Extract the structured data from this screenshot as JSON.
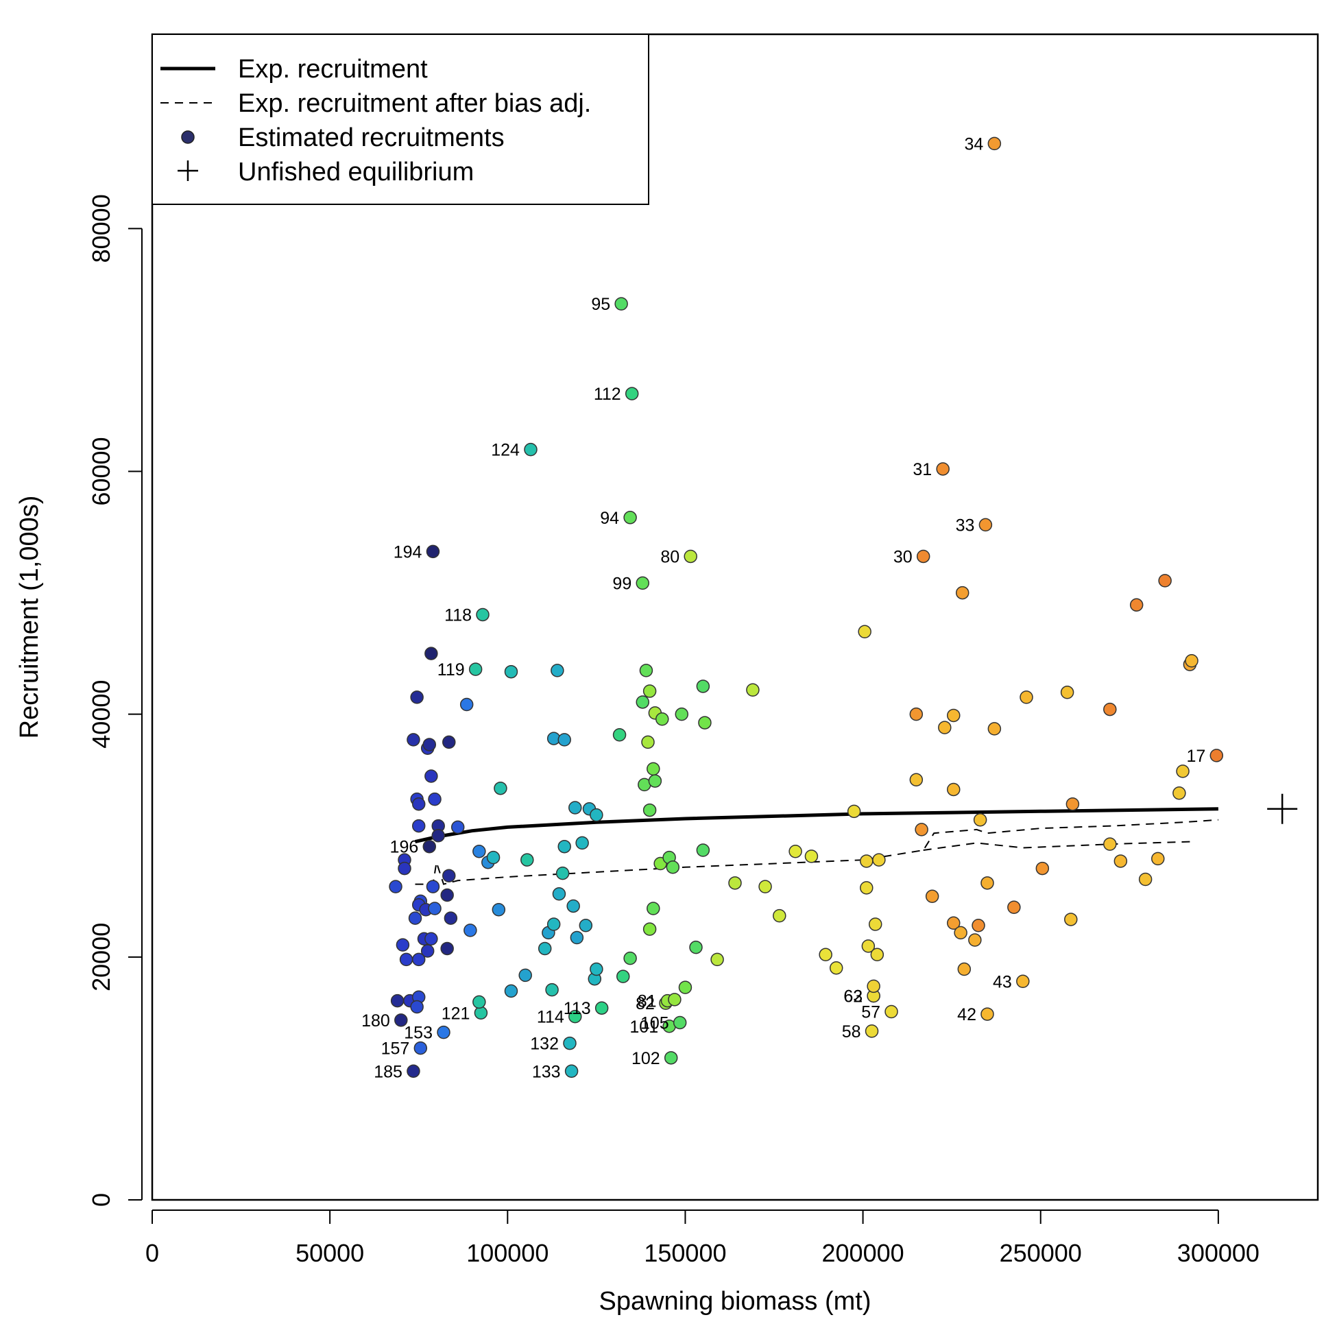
{
  "chart_data": {
    "type": "scatter",
    "title": "",
    "xlabel": "Spawning biomass (mt)",
    "ylabel": "Recruitment (1,000s)",
    "xlim": [
      0,
      328000
    ],
    "ylim": [
      0,
      96000
    ],
    "x_ticks": [
      0,
      50000,
      100000,
      150000,
      200000,
      250000,
      300000
    ],
    "y_ticks": [
      0,
      20000,
      40000,
      60000,
      80000
    ],
    "grid": false,
    "legend": {
      "placement": "top-left",
      "entries": [
        {
          "label": "Exp. recruitment",
          "symbol": "solid-line"
        },
        {
          "label": "Exp. recruitment after bias adj.",
          "symbol": "dashed-line"
        },
        {
          "label": "Estimated recruitments",
          "symbol": "dot"
        },
        {
          "label": "Unfished equilibrium",
          "symbol": "plus"
        }
      ]
    },
    "colors": {
      "gradient": [
        "#1e1e5a",
        "#2a38c8",
        "#2a78e6",
        "#22b4c4",
        "#28d08a",
        "#7ee640",
        "#e8e83a",
        "#f6b830",
        "#f08a30",
        "#e86a2a"
      ],
      "expected_line": "#000000",
      "point_outline": "#333333"
    },
    "expected_recruitment": {
      "x": [
        74000,
        80000,
        90000,
        100000,
        125000,
        150000,
        200000,
        250000,
        300000
      ],
      "y": [
        29500,
        29900,
        30400,
        30700,
        31100,
        31400,
        31800,
        32000,
        32200
      ]
    },
    "bias_adjusted_recruitment": {
      "x": [
        74000,
        79000,
        80000,
        82000,
        86000,
        100000,
        150000,
        200000,
        217000,
        220000,
        232000,
        235000,
        250000,
        270000,
        290000,
        300000
      ],
      "y": [
        26000,
        26000,
        27800,
        26000,
        26300,
        26600,
        27400,
        28000,
        28800,
        30200,
        30500,
        30200,
        30600,
        30800,
        31100,
        31300
      ]
    },
    "bias_adjusted_recruitment_extra": {
      "x": [
        217000,
        232000,
        245000,
        270000,
        292000
      ],
      "y": [
        28800,
        29400,
        29000,
        29300,
        29500
      ]
    },
    "unfished_equilibrium": {
      "x": 318000,
      "y": 32200
    },
    "points": [
      {
        "x": 237000,
        "y": 87000,
        "label": "34",
        "c": 0.85
      },
      {
        "x": 132000,
        "y": 73800,
        "label": "95",
        "c": 0.5
      },
      {
        "x": 135000,
        "y": 66400,
        "label": "112",
        "c": 0.46
      },
      {
        "x": 106500,
        "y": 61800,
        "label": "124",
        "c": 0.38
      },
      {
        "x": 222500,
        "y": 60200,
        "label": "31",
        "c": 0.88
      },
      {
        "x": 134500,
        "y": 56200,
        "label": "94",
        "c": 0.52
      },
      {
        "x": 234500,
        "y": 55600,
        "label": "33",
        "c": 0.86
      },
      {
        "x": 79000,
        "y": 53400,
        "label": "194",
        "c": 0.02
      },
      {
        "x": 151500,
        "y": 53000,
        "label": "80",
        "c": 0.62
      },
      {
        "x": 217000,
        "y": 53000,
        "label": "30",
        "c": 0.89
      },
      {
        "x": 138000,
        "y": 50800,
        "label": "99",
        "c": 0.52
      },
      {
        "x": 93000,
        "y": 48200,
        "label": "118",
        "c": 0.4
      },
      {
        "x": 91000,
        "y": 43700,
        "label": "119",
        "c": 0.4
      },
      {
        "x": 299500,
        "y": 36600,
        "label": "17",
        "c": 0.93
      },
      {
        "x": 78000,
        "y": 29100,
        "label": "196",
        "c": 0.02
      },
      {
        "x": 144500,
        "y": 16200,
        "label": "82",
        "c": 0.58
      },
      {
        "x": 145000,
        "y": 16400,
        "label": "81",
        "c": 0.58
      },
      {
        "x": 203000,
        "y": 16800,
        "label": "62",
        "c": 0.7
      },
      {
        "x": 203000,
        "y": 16800,
        "label": "63",
        "c": 0.7
      },
      {
        "x": 208000,
        "y": 15500,
        "label": "57",
        "c": 0.7
      },
      {
        "x": 245000,
        "y": 18000,
        "label": "43",
        "c": 0.78
      },
      {
        "x": 235000,
        "y": 15300,
        "label": "42",
        "c": 0.78
      },
      {
        "x": 202500,
        "y": 13900,
        "label": "58",
        "c": 0.7
      },
      {
        "x": 126500,
        "y": 15800,
        "label": "113",
        "c": 0.45
      },
      {
        "x": 119000,
        "y": 15100,
        "label": "114",
        "c": 0.45
      },
      {
        "x": 92500,
        "y": 15400,
        "label": "121",
        "c": 0.4
      },
      {
        "x": 145500,
        "y": 14300,
        "label": "101",
        "c": 0.52
      },
      {
        "x": 148500,
        "y": 14600,
        "label": "105",
        "c": 0.5
      },
      {
        "x": 117500,
        "y": 12900,
        "label": "132",
        "c": 0.34
      },
      {
        "x": 118000,
        "y": 10600,
        "label": "133",
        "c": 0.34
      },
      {
        "x": 146000,
        "y": 11700,
        "label": "102",
        "c": 0.5
      },
      {
        "x": 70000,
        "y": 14800,
        "label": "180",
        "c": 0.04
      },
      {
        "x": 82000,
        "y": 13800,
        "label": "153",
        "c": 0.22
      },
      {
        "x": 75500,
        "y": 12500,
        "label": "157",
        "c": 0.18
      },
      {
        "x": 73500,
        "y": 10600,
        "label": "185",
        "c": 0.05
      },
      {
        "x": 78500,
        "y": 45000,
        "c": 0.02
      },
      {
        "x": 74500,
        "y": 41400,
        "c": 0.06
      },
      {
        "x": 88500,
        "y": 40800,
        "c": 0.22
      },
      {
        "x": 73500,
        "y": 37900,
        "c": 0.08
      },
      {
        "x": 77500,
        "y": 37200,
        "c": 0.1
      },
      {
        "x": 78000,
        "y": 37500,
        "c": 0.06
      },
      {
        "x": 83500,
        "y": 37700,
        "c": 0.04
      },
      {
        "x": 78500,
        "y": 34900,
        "c": 0.1
      },
      {
        "x": 74500,
        "y": 33000,
        "c": 0.12
      },
      {
        "x": 75000,
        "y": 32600,
        "c": 0.1
      },
      {
        "x": 79500,
        "y": 33000,
        "c": 0.12
      },
      {
        "x": 75000,
        "y": 30800,
        "c": 0.12
      },
      {
        "x": 80500,
        "y": 30800,
        "c": 0.06
      },
      {
        "x": 86000,
        "y": 30700,
        "c": 0.16
      },
      {
        "x": 80500,
        "y": 30000,
        "c": 0.04
      },
      {
        "x": 71000,
        "y": 28000,
        "c": 0.1
      },
      {
        "x": 71000,
        "y": 27300,
        "c": 0.1
      },
      {
        "x": 83500,
        "y": 26700,
        "c": 0.06
      },
      {
        "x": 68500,
        "y": 25800,
        "c": 0.14
      },
      {
        "x": 79000,
        "y": 25800,
        "c": 0.14
      },
      {
        "x": 83000,
        "y": 25100,
        "c": 0.04
      },
      {
        "x": 75500,
        "y": 24600,
        "c": 0.14
      },
      {
        "x": 75000,
        "y": 24300,
        "c": 0.12
      },
      {
        "x": 77000,
        "y": 23900,
        "c": 0.1
      },
      {
        "x": 79500,
        "y": 24000,
        "c": 0.18
      },
      {
        "x": 74000,
        "y": 23200,
        "c": 0.14
      },
      {
        "x": 84000,
        "y": 23200,
        "c": 0.06
      },
      {
        "x": 76500,
        "y": 21500,
        "c": 0.1
      },
      {
        "x": 78500,
        "y": 21500,
        "c": 0.12
      },
      {
        "x": 70500,
        "y": 21000,
        "c": 0.12
      },
      {
        "x": 77500,
        "y": 20500,
        "c": 0.1
      },
      {
        "x": 83000,
        "y": 20700,
        "c": 0.04
      },
      {
        "x": 71500,
        "y": 19800,
        "c": 0.12
      },
      {
        "x": 75000,
        "y": 19800,
        "c": 0.12
      },
      {
        "x": 69000,
        "y": 16400,
        "c": 0.06
      },
      {
        "x": 72500,
        "y": 16400,
        "c": 0.1
      },
      {
        "x": 75000,
        "y": 16700,
        "c": 0.14
      },
      {
        "x": 74500,
        "y": 15900,
        "c": 0.14
      },
      {
        "x": 89500,
        "y": 22200,
        "c": 0.22
      },
      {
        "x": 92000,
        "y": 28700,
        "c": 0.24
      },
      {
        "x": 94500,
        "y": 27800,
        "c": 0.26
      },
      {
        "x": 96000,
        "y": 28200,
        "c": 0.34
      },
      {
        "x": 97500,
        "y": 23900,
        "c": 0.26
      },
      {
        "x": 98000,
        "y": 33900,
        "c": 0.38
      },
      {
        "x": 92000,
        "y": 16300,
        "c": 0.4
      },
      {
        "x": 101000,
        "y": 43500,
        "c": 0.36
      },
      {
        "x": 101000,
        "y": 17200,
        "c": 0.3
      },
      {
        "x": 105000,
        "y": 18500,
        "c": 0.3
      },
      {
        "x": 105500,
        "y": 28000,
        "c": 0.4
      },
      {
        "x": 110500,
        "y": 20700,
        "c": 0.34
      },
      {
        "x": 111500,
        "y": 22000,
        "c": 0.3
      },
      {
        "x": 112500,
        "y": 17300,
        "c": 0.38
      },
      {
        "x": 113000,
        "y": 22700,
        "c": 0.34
      },
      {
        "x": 113000,
        "y": 38000,
        "c": 0.3
      },
      {
        "x": 114000,
        "y": 43600,
        "c": 0.32
      },
      {
        "x": 114500,
        "y": 25200,
        "c": 0.32
      },
      {
        "x": 115500,
        "y": 26900,
        "c": 0.38
      },
      {
        "x": 116000,
        "y": 29100,
        "c": 0.34
      },
      {
        "x": 116000,
        "y": 37900,
        "c": 0.3
      },
      {
        "x": 118500,
        "y": 24200,
        "c": 0.32
      },
      {
        "x": 119000,
        "y": 32300,
        "c": 0.32
      },
      {
        "x": 119500,
        "y": 21600,
        "c": 0.3
      },
      {
        "x": 121000,
        "y": 29400,
        "c": 0.34
      },
      {
        "x": 122000,
        "y": 22600,
        "c": 0.32
      },
      {
        "x": 123000,
        "y": 32200,
        "c": 0.32
      },
      {
        "x": 124500,
        "y": 18200,
        "c": 0.34
      },
      {
        "x": 125000,
        "y": 19000,
        "c": 0.34
      },
      {
        "x": 125000,
        "y": 31700,
        "c": 0.34
      },
      {
        "x": 131500,
        "y": 38300,
        "c": 0.46
      },
      {
        "x": 132500,
        "y": 18400,
        "c": 0.46
      },
      {
        "x": 134500,
        "y": 19900,
        "c": 0.5
      },
      {
        "x": 138000,
        "y": 41000,
        "c": 0.5
      },
      {
        "x": 138500,
        "y": 34200,
        "c": 0.52
      },
      {
        "x": 139000,
        "y": 43600,
        "c": 0.52
      },
      {
        "x": 139500,
        "y": 37700,
        "c": 0.6
      },
      {
        "x": 140000,
        "y": 22300,
        "c": 0.56
      },
      {
        "x": 140000,
        "y": 32100,
        "c": 0.52
      },
      {
        "x": 140000,
        "y": 41900,
        "c": 0.58
      },
      {
        "x": 141000,
        "y": 35500,
        "c": 0.54
      },
      {
        "x": 141000,
        "y": 24000,
        "c": 0.52
      },
      {
        "x": 141500,
        "y": 40100,
        "c": 0.6
      },
      {
        "x": 141500,
        "y": 34500,
        "c": 0.52
      },
      {
        "x": 143000,
        "y": 27700,
        "c": 0.56
      },
      {
        "x": 143500,
        "y": 39600,
        "c": 0.54
      },
      {
        "x": 145500,
        "y": 28200,
        "c": 0.52
      },
      {
        "x": 146500,
        "y": 27400,
        "c": 0.52
      },
      {
        "x": 147000,
        "y": 16500,
        "c": 0.58
      },
      {
        "x": 149000,
        "y": 40000,
        "c": 0.52
      },
      {
        "x": 150000,
        "y": 17500,
        "c": 0.54
      },
      {
        "x": 153000,
        "y": 20800,
        "c": 0.5
      },
      {
        "x": 155000,
        "y": 28800,
        "c": 0.5
      },
      {
        "x": 155000,
        "y": 42300,
        "c": 0.5
      },
      {
        "x": 155500,
        "y": 39300,
        "c": 0.54
      },
      {
        "x": 159000,
        "y": 19800,
        "c": 0.62
      },
      {
        "x": 164000,
        "y": 26100,
        "c": 0.62
      },
      {
        "x": 169000,
        "y": 42000,
        "c": 0.62
      },
      {
        "x": 172500,
        "y": 25800,
        "c": 0.64
      },
      {
        "x": 176500,
        "y": 23400,
        "c": 0.64
      },
      {
        "x": 181000,
        "y": 28700,
        "c": 0.66
      },
      {
        "x": 185500,
        "y": 28300,
        "c": 0.66
      },
      {
        "x": 189500,
        "y": 20200,
        "c": 0.68
      },
      {
        "x": 192500,
        "y": 19100,
        "c": 0.68
      },
      {
        "x": 197500,
        "y": 32000,
        "c": 0.7
      },
      {
        "x": 200500,
        "y": 46800,
        "c": 0.7
      },
      {
        "x": 201000,
        "y": 27900,
        "c": 0.72
      },
      {
        "x": 201000,
        "y": 25700,
        "c": 0.7
      },
      {
        "x": 201500,
        "y": 20900,
        "c": 0.7
      },
      {
        "x": 203000,
        "y": 17600,
        "c": 0.72
      },
      {
        "x": 203500,
        "y": 22700,
        "c": 0.7
      },
      {
        "x": 204000,
        "y": 20200,
        "c": 0.7
      },
      {
        "x": 204500,
        "y": 28000,
        "c": 0.72
      },
      {
        "x": 215000,
        "y": 40000,
        "c": 0.86
      },
      {
        "x": 215000,
        "y": 34600,
        "c": 0.76
      },
      {
        "x": 216500,
        "y": 30500,
        "c": 0.86
      },
      {
        "x": 219500,
        "y": 25000,
        "c": 0.84
      },
      {
        "x": 223000,
        "y": 38900,
        "c": 0.78
      },
      {
        "x": 225500,
        "y": 33800,
        "c": 0.78
      },
      {
        "x": 225500,
        "y": 39900,
        "c": 0.78
      },
      {
        "x": 225500,
        "y": 22800,
        "c": 0.84
      },
      {
        "x": 227500,
        "y": 22000,
        "c": 0.8
      },
      {
        "x": 228000,
        "y": 50000,
        "c": 0.84
      },
      {
        "x": 228500,
        "y": 19000,
        "c": 0.8
      },
      {
        "x": 231500,
        "y": 21400,
        "c": 0.8
      },
      {
        "x": 232500,
        "y": 22600,
        "c": 0.88
      },
      {
        "x": 233000,
        "y": 31300,
        "c": 0.76
      },
      {
        "x": 235000,
        "y": 26100,
        "c": 0.8
      },
      {
        "x": 237000,
        "y": 38800,
        "c": 0.8
      },
      {
        "x": 242500,
        "y": 24100,
        "c": 0.88
      },
      {
        "x": 246000,
        "y": 41400,
        "c": 0.78
      },
      {
        "x": 250500,
        "y": 27300,
        "c": 0.86
      },
      {
        "x": 257500,
        "y": 41800,
        "c": 0.76
      },
      {
        "x": 258500,
        "y": 23100,
        "c": 0.76
      },
      {
        "x": 259000,
        "y": 32600,
        "c": 0.86
      },
      {
        "x": 269500,
        "y": 40400,
        "c": 0.9
      },
      {
        "x": 269500,
        "y": 29300,
        "c": 0.76
      },
      {
        "x": 272500,
        "y": 27900,
        "c": 0.78
      },
      {
        "x": 277000,
        "y": 49000,
        "c": 0.9
      },
      {
        "x": 279500,
        "y": 26400,
        "c": 0.76
      },
      {
        "x": 283000,
        "y": 28100,
        "c": 0.78
      },
      {
        "x": 285000,
        "y": 51000,
        "c": 0.92
      },
      {
        "x": 289000,
        "y": 33500,
        "c": 0.74
      },
      {
        "x": 290000,
        "y": 35300,
        "c": 0.74
      },
      {
        "x": 292000,
        "y": 44100,
        "c": 0.82
      },
      {
        "x": 292500,
        "y": 44400,
        "c": 0.78
      }
    ]
  }
}
